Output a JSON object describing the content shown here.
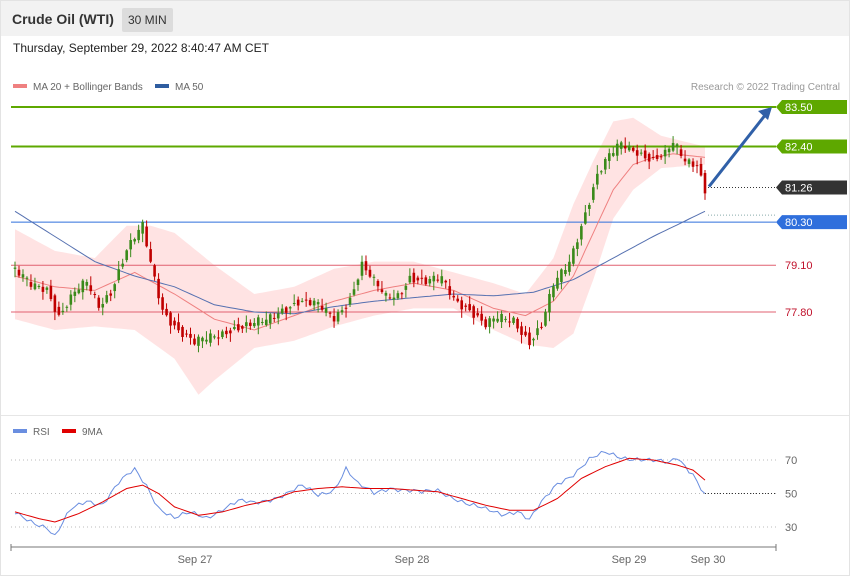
{
  "header": {
    "instrument": "Crude Oil (WTI)",
    "timeframe": "30 MIN",
    "datetime": "Thursday, September 29, 2022 8:40:47 AM CET"
  },
  "legend": {
    "ma20": "MA 20 + Bollinger Bands",
    "ma50": "MA 50",
    "rsi": "RSI",
    "rsi_ma": "9MA",
    "copyright": "Research © 2022 Trading Central"
  },
  "colors": {
    "resistance": "#5ea800",
    "pivot": "#2f6fdc",
    "support": "#e06070",
    "price_tag": "#333333",
    "candle_up": "#3a8a1a",
    "candle_down": "#c00000",
    "band_fill": "#ffe0e0",
    "ma20": "#ef8080",
    "ma50": "#5570b0",
    "rsi": "#6a8ee0",
    "rsi_ma": "#e00000",
    "arrow": "#3060a8"
  },
  "chart_data": [
    {
      "type": "candlestick",
      "ylim": [
        75.4,
        84.4
      ],
      "x_ticks": [
        "Sep 27",
        "Sep 28",
        "Sep 29",
        "Sep 30"
      ],
      "levels": [
        {
          "value": 83.5,
          "label": "83.50",
          "kind": "resistance"
        },
        {
          "value": 82.4,
          "label": "82.40",
          "kind": "resistance"
        },
        {
          "value": 80.3,
          "label": "80.30",
          "kind": "pivot"
        },
        {
          "value": 79.1,
          "label": "79.10",
          "kind": "support"
        },
        {
          "value": 77.8,
          "label": "77.80",
          "kind": "support"
        }
      ],
      "last_price": {
        "value": 81.26,
        "label": "81.26"
      },
      "forecast_target": 83.5,
      "close_anchors": [
        [
          0,
          78.9
        ],
        [
          4,
          78.55
        ],
        [
          8,
          78.5
        ],
        [
          11,
          77.7
        ],
        [
          15,
          78.3
        ],
        [
          18,
          78.6
        ],
        [
          21,
          78.0
        ],
        [
          24,
          78.4
        ],
        [
          28,
          79.5
        ],
        [
          32,
          80.15
        ],
        [
          34,
          79.15
        ],
        [
          37,
          77.9
        ],
        [
          41,
          77.3
        ],
        [
          45,
          76.9
        ],
        [
          49,
          77.1
        ],
        [
          54,
          77.35
        ],
        [
          59,
          77.4
        ],
        [
          63,
          77.55
        ],
        [
          67,
          77.9
        ],
        [
          71,
          78.1
        ],
        [
          76,
          77.95
        ],
        [
          80,
          77.65
        ],
        [
          84,
          78.2
        ],
        [
          87,
          79.1
        ],
        [
          90,
          78.6
        ],
        [
          93,
          78.2
        ],
        [
          96,
          78.3
        ],
        [
          99,
          78.8
        ],
        [
          103,
          78.6
        ],
        [
          107,
          78.7
        ],
        [
          110,
          78.2
        ],
        [
          114,
          77.9
        ],
        [
          118,
          77.4
        ],
        [
          121,
          77.6
        ],
        [
          125,
          77.6
        ],
        [
          129,
          77.0
        ],
        [
          132,
          77.4
        ],
        [
          135,
          78.5
        ],
        [
          139,
          79.2
        ],
        [
          143,
          80.6
        ],
        [
          146,
          81.6
        ],
        [
          149,
          82.1
        ],
        [
          152,
          82.45
        ],
        [
          156,
          82.3
        ],
        [
          160,
          82.05
        ],
        [
          163,
          82.15
        ],
        [
          165,
          82.45
        ],
        [
          168,
          82.0
        ],
        [
          171,
          81.95
        ],
        [
          173,
          81.26
        ]
      ],
      "ma20_anchors": [
        [
          0,
          78.8
        ],
        [
          10,
          78.5
        ],
        [
          20,
          78.4
        ],
        [
          30,
          78.9
        ],
        [
          40,
          78.3
        ],
        [
          50,
          77.6
        ],
        [
          60,
          77.3
        ],
        [
          70,
          77.7
        ],
        [
          80,
          78.1
        ],
        [
          90,
          78.4
        ],
        [
          100,
          78.6
        ],
        [
          110,
          78.4
        ],
        [
          120,
          77.9
        ],
        [
          128,
          77.7
        ],
        [
          135,
          78.1
        ],
        [
          140,
          78.8
        ],
        [
          145,
          80.0
        ],
        [
          150,
          81.2
        ],
        [
          155,
          81.9
        ],
        [
          160,
          82.1
        ],
        [
          165,
          82.2
        ],
        [
          173,
          82.1
        ]
      ],
      "band_upper_anchors": [
        [
          0,
          80.1
        ],
        [
          10,
          79.5
        ],
        [
          20,
          79.3
        ],
        [
          28,
          80.2
        ],
        [
          34,
          80.2
        ],
        [
          40,
          80.0
        ],
        [
          50,
          79.1
        ],
        [
          60,
          78.3
        ],
        [
          70,
          78.5
        ],
        [
          80,
          79.0
        ],
        [
          90,
          79.2
        ],
        [
          100,
          79.2
        ],
        [
          110,
          78.9
        ],
        [
          120,
          78.6
        ],
        [
          128,
          78.3
        ],
        [
          135,
          79.3
        ],
        [
          140,
          80.8
        ],
        [
          145,
          82.0
        ],
        [
          150,
          83.1
        ],
        [
          155,
          83.2
        ],
        [
          162,
          82.7
        ],
        [
          173,
          82.4
        ]
      ],
      "band_lower_anchors": [
        [
          0,
          77.6
        ],
        [
          10,
          77.3
        ],
        [
          20,
          77.4
        ],
        [
          30,
          77.3
        ],
        [
          40,
          76.5
        ],
        [
          46,
          75.5
        ],
        [
          50,
          75.9
        ],
        [
          60,
          76.8
        ],
        [
          70,
          77.0
        ],
        [
          80,
          77.4
        ],
        [
          90,
          77.7
        ],
        [
          100,
          77.9
        ],
        [
          110,
          77.9
        ],
        [
          120,
          77.3
        ],
        [
          128,
          76.9
        ],
        [
          135,
          76.8
        ],
        [
          140,
          77.2
        ],
        [
          145,
          78.7
        ],
        [
          150,
          80.4
        ],
        [
          155,
          81.2
        ],
        [
          162,
          81.8
        ],
        [
          173,
          81.9
        ]
      ],
      "ma50_anchors": [
        [
          0,
          80.6
        ],
        [
          10,
          79.9
        ],
        [
          20,
          79.2
        ],
        [
          30,
          78.8
        ],
        [
          40,
          78.5
        ],
        [
          50,
          78.0
        ],
        [
          60,
          77.8
        ],
        [
          70,
          77.75
        ],
        [
          80,
          77.95
        ],
        [
          90,
          78.1
        ],
        [
          100,
          78.2
        ],
        [
          110,
          78.3
        ],
        [
          120,
          78.25
        ],
        [
          130,
          78.35
        ],
        [
          140,
          78.7
        ],
        [
          150,
          79.3
        ],
        [
          160,
          79.9
        ],
        [
          173,
          80.6
        ]
      ]
    },
    {
      "type": "line",
      "ylim": [
        20,
        80
      ],
      "y_ticks": [
        70,
        50,
        30
      ],
      "series": [
        {
          "name": "RSI",
          "anchors": [
            [
              0,
              38
            ],
            [
              4,
              34
            ],
            [
              8,
              30
            ],
            [
              10,
              24
            ],
            [
              14,
              40
            ],
            [
              18,
              46
            ],
            [
              22,
              44
            ],
            [
              26,
              56
            ],
            [
              30,
              64
            ],
            [
              33,
              55
            ],
            [
              36,
              42
            ],
            [
              40,
              35
            ],
            [
              44,
              38
            ],
            [
              48,
              36
            ],
            [
              52,
              41
            ],
            [
              56,
              45
            ],
            [
              60,
              44
            ],
            [
              64,
              47
            ],
            [
              68,
              50
            ],
            [
              72,
              54
            ],
            [
              76,
              49
            ],
            [
              80,
              53
            ],
            [
              83,
              65
            ],
            [
              86,
              55
            ],
            [
              90,
              50
            ],
            [
              94,
              54
            ],
            [
              98,
              52
            ],
            [
              102,
              50
            ],
            [
              106,
              52
            ],
            [
              110,
              48
            ],
            [
              114,
              43
            ],
            [
              118,
              40
            ],
            [
              122,
              38
            ],
            [
              126,
              40
            ],
            [
              129,
              34
            ],
            [
              132,
              44
            ],
            [
              136,
              56
            ],
            [
              140,
              62
            ],
            [
              144,
              70
            ],
            [
              148,
              74
            ],
            [
              152,
              72
            ],
            [
              156,
              71
            ],
            [
              160,
              69
            ],
            [
              164,
              68
            ],
            [
              166,
              72
            ],
            [
              170,
              62
            ],
            [
              173,
              49
            ]
          ]
        },
        {
          "name": "9MA",
          "anchors": [
            [
              0,
              39
            ],
            [
              6,
              35
            ],
            [
              10,
              33
            ],
            [
              16,
              38
            ],
            [
              22,
              45
            ],
            [
              28,
              53
            ],
            [
              32,
              55
            ],
            [
              36,
              50
            ],
            [
              40,
              42
            ],
            [
              46,
              37
            ],
            [
              52,
              39
            ],
            [
              58,
              43
            ],
            [
              64,
              46
            ],
            [
              70,
              51
            ],
            [
              76,
              53
            ],
            [
              82,
              54
            ],
            [
              88,
              53
            ],
            [
              94,
              53
            ],
            [
              100,
              52
            ],
            [
              106,
              51
            ],
            [
              112,
              47
            ],
            [
              118,
              43
            ],
            [
              124,
              40
            ],
            [
              130,
              40
            ],
            [
              136,
              47
            ],
            [
              142,
              59
            ],
            [
              148,
              66
            ],
            [
              154,
              71
            ],
            [
              160,
              70
            ],
            [
              166,
              67
            ],
            [
              170,
              64
            ],
            [
              173,
              58
            ]
          ]
        }
      ]
    }
  ]
}
